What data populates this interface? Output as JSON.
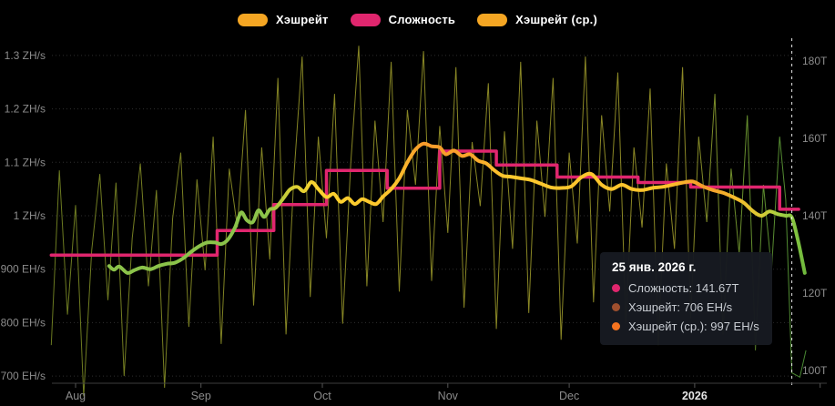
{
  "page": {
    "background": "#000000"
  },
  "legend": {
    "items": [
      {
        "label": "Хэшрейт",
        "color": "#f5a623"
      },
      {
        "label": "Сложность",
        "color": "#e0266e"
      },
      {
        "label": "Хэшрейт (ср.)",
        "color": "#f5a623"
      }
    ]
  },
  "axes": {
    "left": {
      "unit": "hashrate EH/s (ZH/s above 1000)",
      "ticks": [
        {
          "label": "1.3 ZH/s",
          "value": 1300
        },
        {
          "label": "1.2 ZH/s",
          "value": 1200
        },
        {
          "label": "1.1 ZH/s",
          "value": 1100
        },
        {
          "label": "1 ZH/s",
          "value": 1000
        },
        {
          "label": "900 EH/s",
          "value": 900
        },
        {
          "label": "800 EH/s",
          "value": 800
        },
        {
          "label": "700 EH/s",
          "value": 700
        }
      ]
    },
    "right": {
      "unit": "difficulty T",
      "ticks": [
        {
          "label": "180T",
          "value": 180
        },
        {
          "label": "160T",
          "value": 160
        },
        {
          "label": "140T",
          "value": 140
        },
        {
          "label": "120T",
          "value": 120
        },
        {
          "label": "100T",
          "value": 100
        }
      ]
    },
    "x": {
      "ticks": [
        {
          "label": "Aug",
          "day": 6,
          "emphasis": false
        },
        {
          "label": "Sep",
          "day": 37,
          "emphasis": false
        },
        {
          "label": "Oct",
          "day": 67,
          "emphasis": false
        },
        {
          "label": "Nov",
          "day": 98,
          "emphasis": false
        },
        {
          "label": "Dec",
          "day": 128,
          "emphasis": false
        },
        {
          "label": "2026",
          "day": 159,
          "emphasis": true
        }
      ],
      "extra_tick_days": [
        190
      ]
    }
  },
  "tooltip": {
    "title": "25 янв. 2026 г.",
    "rows": [
      {
        "dot_color": "#e0266e",
        "name": "Сложность",
        "value": "141.67T"
      },
      {
        "dot_color": "#9e4f2e",
        "name": "Хэшрейт",
        "value": "706 EH/s"
      },
      {
        "dot_color": "#f5731f",
        "name": "Хэшрейт (ср.)",
        "value": "997 EH/s"
      }
    ]
  },
  "colors": {
    "background": "#000000",
    "grid_line": "#2e2e2e",
    "axis_line": "#3c3c3c",
    "axis_tick": "#555555",
    "axis_text": "#8c8c8c",
    "axis_text_emphasis": "#e6e6e6",
    "now_line": "#ffffff",
    "difficulty": "#e0266e",
    "tooltip_bg": "#171a21"
  },
  "chart_data": {
    "type": "line",
    "title": "",
    "x_axis": {
      "start_date": "2025-07-26",
      "end_date": "2026-01-29",
      "unit": "day index from start"
    },
    "left_axis": {
      "label": "hashrate",
      "unit": "EH/s",
      "range": [
        680,
        1330
      ]
    },
    "right_axis": {
      "label": "difficulty",
      "unit": "T",
      "range": [
        96,
        182
      ]
    },
    "grid": "dotted horizontal",
    "legend_position": "top center",
    "now_marker": {
      "date": "2026-01-25",
      "day": 183
    },
    "series": [
      {
        "name": "Хэшрейт",
        "style": "thin jagged daily line",
        "unit": "EH/s",
        "gradient_stops": [
          [
            0,
            "#7d8f26"
          ],
          [
            0.28,
            "#9c9c2a"
          ],
          [
            0.84,
            "#a5a02c"
          ],
          [
            0.92,
            "#79a836"
          ],
          [
            1,
            "#54a23c"
          ]
        ],
        "points": [
          [
            0,
            758
          ],
          [
            2,
            1085
          ],
          [
            4,
            815
          ],
          [
            6,
            1020
          ],
          [
            8,
            662
          ],
          [
            10,
            935
          ],
          [
            12,
            1078
          ],
          [
            14,
            842
          ],
          [
            16,
            1062
          ],
          [
            18,
            700
          ],
          [
            20,
            958
          ],
          [
            22,
            1098
          ],
          [
            24,
            868
          ],
          [
            26,
            1048
          ],
          [
            28,
            678
          ],
          [
            30,
            995
          ],
          [
            32,
            1118
          ],
          [
            34,
            792
          ],
          [
            36,
            1068
          ],
          [
            38,
            898
          ],
          [
            40,
            1148
          ],
          [
            42,
            760
          ],
          [
            44,
            1088
          ],
          [
            46,
            978
          ],
          [
            48,
            1198
          ],
          [
            50,
            832
          ],
          [
            52,
            1128
          ],
          [
            54,
            918
          ],
          [
            56,
            1258
          ],
          [
            58,
            778
          ],
          [
            60,
            1078
          ],
          [
            62,
            1298
          ],
          [
            64,
            848
          ],
          [
            66,
            1148
          ],
          [
            68,
            958
          ],
          [
            70,
            1228
          ],
          [
            72,
            798
          ],
          [
            74,
            1098
          ],
          [
            76,
            1318
          ],
          [
            78,
            868
          ],
          [
            80,
            1178
          ],
          [
            82,
            988
          ],
          [
            84,
            1288
          ],
          [
            86,
            858
          ],
          [
            88,
            1198
          ],
          [
            90,
            1058
          ],
          [
            92,
            1308
          ],
          [
            94,
            878
          ],
          [
            96,
            1168
          ],
          [
            98,
            968
          ],
          [
            100,
            1278
          ],
          [
            102,
            828
          ],
          [
            104,
            1138
          ],
          [
            106,
            1018
          ],
          [
            108,
            1248
          ],
          [
            110,
            788
          ],
          [
            112,
            1158
          ],
          [
            114,
            938
          ],
          [
            116,
            1288
          ],
          [
            118,
            818
          ],
          [
            120,
            1178
          ],
          [
            122,
            998
          ],
          [
            124,
            1258
          ],
          [
            126,
            768
          ],
          [
            128,
            1118
          ],
          [
            130,
            948
          ],
          [
            132,
            1298
          ],
          [
            134,
            838
          ],
          [
            136,
            1188
          ],
          [
            138,
            1008
          ],
          [
            140,
            1268
          ],
          [
            142,
            798
          ],
          [
            144,
            1128
          ],
          [
            146,
            978
          ],
          [
            148,
            1238
          ],
          [
            150,
            758
          ],
          [
            152,
            1098
          ],
          [
            154,
            938
          ],
          [
            156,
            1278
          ],
          [
            158,
            808
          ],
          [
            160,
            1148
          ],
          [
            162,
            988
          ],
          [
            164,
            1228
          ],
          [
            166,
            778
          ],
          [
            168,
            1088
          ],
          [
            170,
            928
          ],
          [
            172,
            1188
          ],
          [
            174,
            748
          ],
          [
            176,
            1058
          ],
          [
            178,
            898
          ],
          [
            180,
            1148
          ],
          [
            181.5,
            1030
          ],
          [
            183,
            706
          ],
          [
            185,
            698
          ],
          [
            186.5,
            748
          ]
        ]
      },
      {
        "name": "Сложность",
        "style": "step line",
        "unit": "T",
        "end_day": 184.7,
        "steps": [
          {
            "date": "2025-07-26",
            "day": 0,
            "value": 129.8
          },
          {
            "date": "2025-09-05",
            "day": 41,
            "value": 136.2
          },
          {
            "date": "2025-09-19",
            "day": 55,
            "value": 142.9
          },
          {
            "date": "2025-10-02",
            "day": 68,
            "value": 151.7
          },
          {
            "date": "2025-10-17",
            "day": 83,
            "value": 147.1
          },
          {
            "date": "2025-10-30",
            "day": 96,
            "value": 156.7
          },
          {
            "date": "2025-11-13",
            "day": 110,
            "value": 153.1
          },
          {
            "date": "2025-11-28",
            "day": 125,
            "value": 150.0
          },
          {
            "date": "2025-12-18",
            "day": 145,
            "value": 148.6
          },
          {
            "date": "2025-12-31",
            "day": 158,
            "value": 147.4
          },
          {
            "date": "2026-01-22",
            "day": 180,
            "value": 141.67
          }
        ]
      },
      {
        "name": "Хэшрейт (ср.)",
        "style": "thick smooth moving-average line",
        "unit": "EH/s",
        "gradient_stops": [
          [
            0,
            "#8bc34a"
          ],
          [
            0.225,
            "#8bc34a"
          ],
          [
            0.26,
            "#d4cf35"
          ],
          [
            0.3,
            "#fdd32f"
          ],
          [
            0.41,
            "#fcc32c"
          ],
          [
            0.45,
            "#f89b2b"
          ],
          [
            0.52,
            "#f8a32b"
          ],
          [
            0.57,
            "#fdc92e"
          ],
          [
            0.8,
            "#fdc32c"
          ],
          [
            0.855,
            "#f39a2b"
          ],
          [
            0.9,
            "#f6bb2d"
          ],
          [
            0.935,
            "#dcca33"
          ],
          [
            0.965,
            "#a3d144"
          ],
          [
            1,
            "#6fb93d"
          ]
        ],
        "points": [
          [
            14.3,
            906
          ],
          [
            15.5,
            899
          ],
          [
            16.8,
            905
          ],
          [
            18.8,
            893
          ],
          [
            20.5,
            898
          ],
          [
            22.5,
            903
          ],
          [
            24.5,
            900
          ],
          [
            26.5,
            906
          ],
          [
            28.5,
            910
          ],
          [
            30.5,
            912
          ],
          [
            32.5,
            920
          ],
          [
            34.5,
            932
          ],
          [
            36.8,
            944
          ],
          [
            38.5,
            950
          ],
          [
            40.5,
            950
          ],
          [
            42,
            947
          ],
          [
            43.6,
            955
          ],
          [
            45.4,
            978
          ],
          [
            46.9,
            1006
          ],
          [
            48.3,
            992
          ],
          [
            49.8,
            988
          ],
          [
            51.2,
            1010
          ],
          [
            52.6,
            998
          ],
          [
            54,
            1012
          ],
          [
            55.5,
            1015
          ],
          [
            57.5,
            1034
          ],
          [
            59,
            1049
          ],
          [
            60.8,
            1054
          ],
          [
            62.5,
            1046
          ],
          [
            64.3,
            1063
          ],
          [
            66,
            1050
          ],
          [
            68,
            1035
          ],
          [
            69.8,
            1041
          ],
          [
            71.5,
            1026
          ],
          [
            73.3,
            1033
          ],
          [
            75,
            1022
          ],
          [
            76.8,
            1031
          ],
          [
            78.5,
            1026
          ],
          [
            80.3,
            1022
          ],
          [
            82,
            1036
          ],
          [
            84,
            1050
          ],
          [
            86,
            1070
          ],
          [
            88,
            1100
          ],
          [
            90,
            1124
          ],
          [
            92,
            1135
          ],
          [
            94,
            1130
          ],
          [
            96,
            1128
          ],
          [
            97.5,
            1115
          ],
          [
            99.5,
            1122
          ],
          [
            101.5,
            1112
          ],
          [
            103.5,
            1115
          ],
          [
            105.5,
            1103
          ],
          [
            107.5,
            1098
          ],
          [
            109.5,
            1085
          ],
          [
            111.5,
            1075
          ],
          [
            113.5,
            1073
          ],
          [
            116,
            1070
          ],
          [
            118.5,
            1067
          ],
          [
            121,
            1060
          ],
          [
            123.5,
            1053
          ],
          [
            126,
            1052
          ],
          [
            128.5,
            1055
          ],
          [
            131,
            1072
          ],
          [
            133.5,
            1078
          ],
          [
            136,
            1058
          ],
          [
            138.5,
            1050
          ],
          [
            141,
            1058
          ],
          [
            143.5,
            1050
          ],
          [
            146,
            1048
          ],
          [
            148.5,
            1052
          ],
          [
            151,
            1054
          ],
          [
            153.5,
            1058
          ],
          [
            156,
            1062
          ],
          [
            158.5,
            1064
          ],
          [
            161,
            1055
          ],
          [
            163.5,
            1048
          ],
          [
            166,
            1043
          ],
          [
            168.5,
            1035
          ],
          [
            171,
            1025
          ],
          [
            173.5,
            1008
          ],
          [
            175.5,
            1000
          ],
          [
            177.5,
            1008
          ],
          [
            179.5,
            1003
          ],
          [
            181.5,
            1000
          ],
          [
            183,
            997
          ],
          [
            184.5,
            955
          ],
          [
            186.2,
            893
          ]
        ]
      }
    ]
  }
}
